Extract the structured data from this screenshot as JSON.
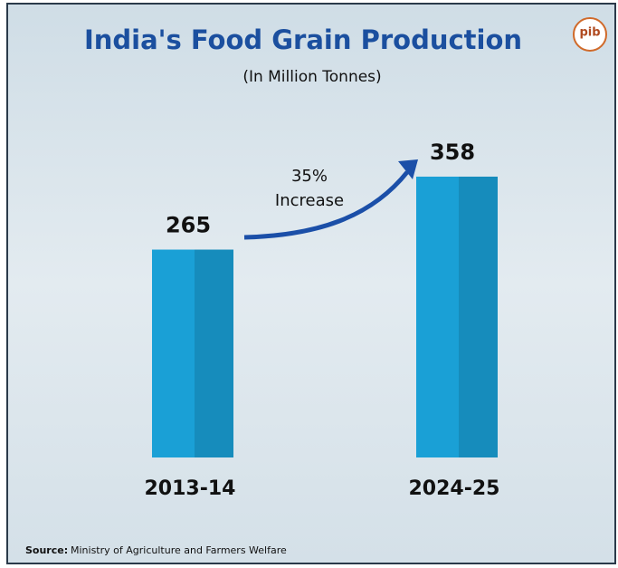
{
  "chart_data": {
    "type": "bar",
    "title": "India's Food Grain Production",
    "subtitle": "(In Million Tonnes)",
    "categories": [
      "2013-14",
      "2024-25"
    ],
    "values": [
      265,
      358
    ],
    "color": "#1aa0d6",
    "annotation": [
      "35%",
      "Increase"
    ],
    "source_label": "Source:",
    "source": "Ministry of Agriculture and Farmers Welfare",
    "logo": "pib"
  }
}
